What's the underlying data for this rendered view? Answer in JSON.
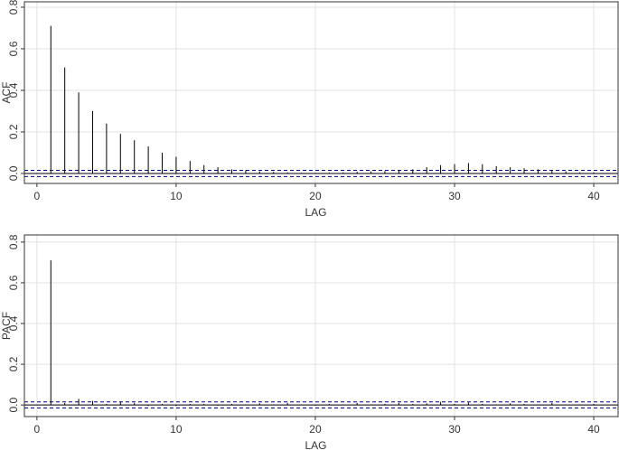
{
  "chart_data": [
    {
      "type": "spike",
      "ylabel": "ACF",
      "xlabel": "LAG",
      "color": "#000000",
      "band_color": "#00008b",
      "grid": true,
      "x": [
        1,
        2,
        3,
        4,
        5,
        6,
        7,
        8,
        9,
        10,
        11,
        12,
        13,
        14,
        15,
        16,
        17,
        18,
        19,
        20,
        21,
        22,
        23,
        24,
        25,
        26,
        27,
        28,
        29,
        30,
        31,
        32,
        33,
        34,
        35,
        36,
        37,
        38,
        39,
        40
      ],
      "values": [
        0.71,
        0.51,
        0.39,
        0.3,
        0.24,
        0.19,
        0.16,
        0.13,
        0.1,
        0.08,
        0.06,
        0.04,
        0.03,
        0.02,
        0.015,
        0.01,
        0.008,
        0.005,
        0.003,
        0.003,
        0.004,
        0.005,
        0.008,
        0.01,
        0.012,
        0.015,
        0.02,
        0.03,
        0.04,
        0.045,
        0.05,
        0.045,
        0.035,
        0.03,
        0.025,
        0.02,
        0.015,
        0.01,
        0.005,
        0.005
      ],
      "bounds": [
        -0.015,
        0.015
      ],
      "xlim": [
        -0.9,
        41.75
      ],
      "ylim": [
        -0.048,
        0.826
      ],
      "xticks": [
        0,
        10,
        20,
        30,
        40
      ],
      "yticks": [
        {
          "value": 0,
          "label": "0.0"
        },
        0.2,
        0.4,
        0.6,
        0.8
      ]
    },
    {
      "type": "spike",
      "ylabel": "PACF",
      "xlabel": "LAG",
      "color": "#000000",
      "band_color": "#00008b",
      "grid": true,
      "x": [
        1,
        2,
        3,
        4,
        5,
        6,
        7,
        8,
        9,
        10,
        11,
        12,
        13,
        14,
        15,
        16,
        17,
        18,
        19,
        20,
        21,
        22,
        23,
        24,
        25,
        26,
        27,
        28,
        29,
        30,
        31,
        32,
        33,
        34,
        35,
        36,
        37,
        38,
        39,
        40
      ],
      "values": [
        0.71,
        0.01,
        0.03,
        0.02,
        0.005,
        0.015,
        0.01,
        -0.005,
        0.005,
        -0.005,
        0.005,
        0.005,
        -0.003,
        0.005,
        0.003,
        0.008,
        0.003,
        0.01,
        0.003,
        -0.003,
        0.005,
        0.003,
        0.01,
        0.003,
        0.005,
        0.01,
        0.005,
        0.008,
        0.015,
        0.005,
        0.012,
        0.005,
        0.003,
        0.008,
        0.005,
        0.003,
        0.01,
        0.003,
        0.003,
        0.005
      ],
      "bounds": [
        -0.015,
        0.015
      ],
      "xlim": [
        -0.9,
        41.75
      ],
      "ylim": [
        -0.057,
        0.835
      ],
      "xticks": [
        0,
        10,
        20,
        30,
        40
      ],
      "yticks": [
        {
          "value": 0,
          "label": "0.0"
        },
        0.2,
        0.4,
        0.6,
        0.8
      ]
    }
  ]
}
